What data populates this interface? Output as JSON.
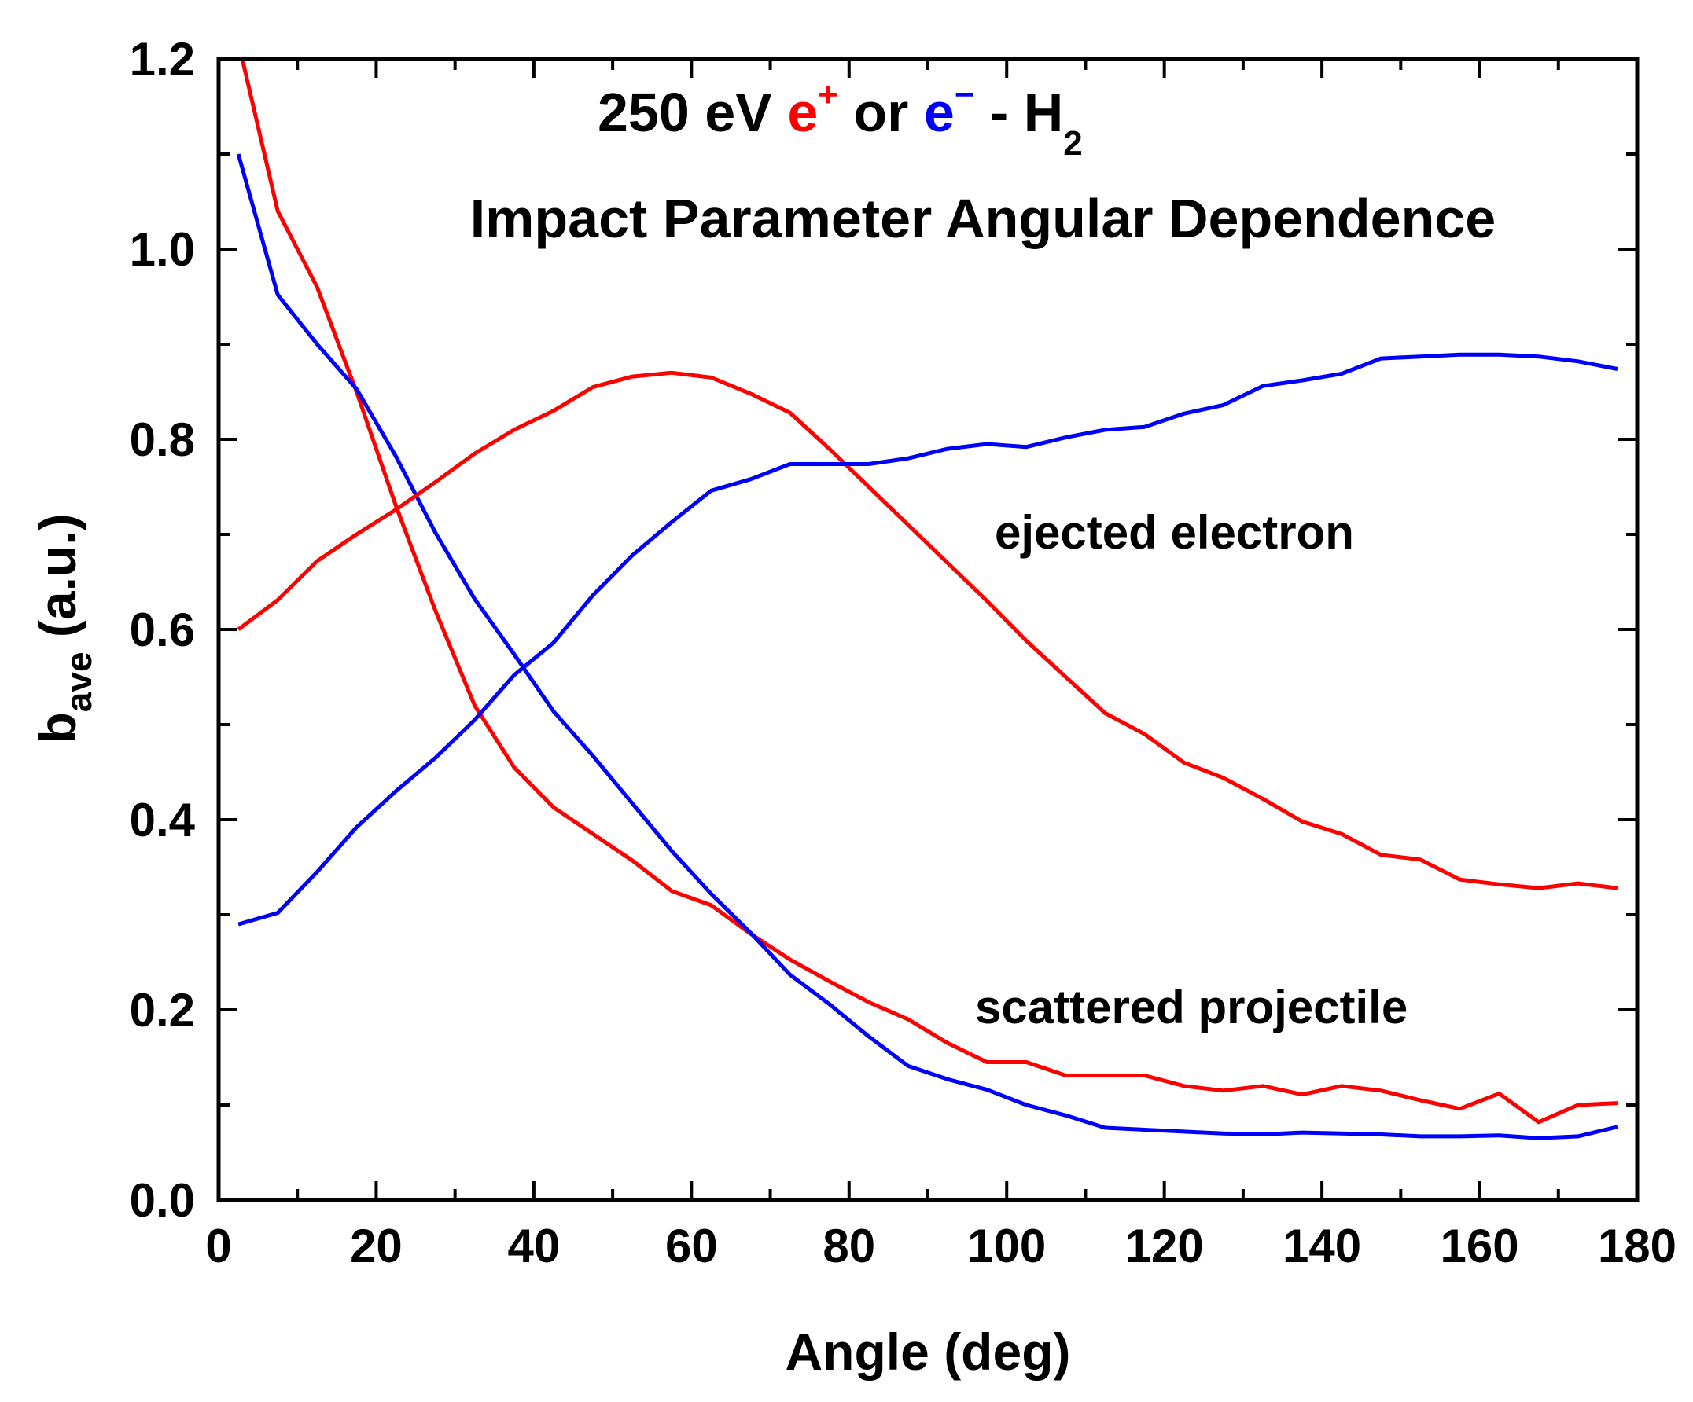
{
  "chart_data": {
    "type": "line",
    "title_parts": {
      "prefix": "250 eV ",
      "positron": "e",
      "positron_sup": "+",
      "or": " or ",
      "electron": "e",
      "electron_sup": "−",
      "target": " - H",
      "target_sub": "2"
    },
    "subtitle": "Impact Parameter Angular Dependence",
    "xlabel": "Angle (deg)",
    "ylabel_main": "b",
    "ylabel_sub": "ave",
    "ylabel_unit": " (a.u.)",
    "xlim": [
      0,
      180
    ],
    "ylim": [
      0,
      1.2
    ],
    "xticks": [
      "0",
      "20",
      "40",
      "60",
      "80",
      "100",
      "120",
      "140",
      "160",
      "180"
    ],
    "yticks": [
      "0.0",
      "0.2",
      "0.4",
      "0.6",
      "0.8",
      "1.0",
      "1.2"
    ],
    "grid": false,
    "annotations": {
      "ejected": "ejected electron",
      "scattered": "scattered projectile"
    },
    "colors": {
      "positron": "#ff0000",
      "electron": "#0000ff"
    },
    "x": [
      2.5,
      7.5,
      12.5,
      17.5,
      22.5,
      27.5,
      32.5,
      37.5,
      42.5,
      47.5,
      52.5,
      57.5,
      62.5,
      67.5,
      72.5,
      77.5,
      82.5,
      87.5,
      92.5,
      97.5,
      102.5,
      107.5,
      112.5,
      117.5,
      122.5,
      127.5,
      132.5,
      137.5,
      142.5,
      147.5,
      152.5,
      157.5,
      162.5,
      167.5,
      172.5,
      177.5
    ],
    "series": [
      {
        "id": "positron-scattered",
        "color": "#ff0000",
        "x": [
          3,
          7.5,
          12.5,
          17.5,
          22.5,
          27.5,
          32.5,
          37.5,
          42.5,
          47.5,
          52.5,
          57.5,
          62.5,
          67.5,
          72.5,
          77.5,
          82.5,
          87.5,
          92.5,
          97.5,
          102.5,
          107.5,
          112.5,
          117.5,
          122.5,
          127.5,
          132.5,
          137.5,
          142.5,
          147.5,
          152.5,
          157.5,
          162.5,
          167.5,
          172.5,
          177.5
        ],
        "values": [
          1.2,
          1.04,
          0.96,
          0.85,
          0.73,
          0.62,
          0.52,
          0.455,
          0.413,
          0.385,
          0.357,
          0.325,
          0.31,
          0.28,
          0.253,
          0.23,
          0.208,
          0.19,
          0.165,
          0.145,
          0.145,
          0.131,
          0.131,
          0.131,
          0.12,
          0.115,
          0.12,
          0.111,
          0.12,
          0.115,
          0.105,
          0.096,
          0.112,
          0.082,
          0.1,
          0.102
        ]
      },
      {
        "id": "electron-scattered",
        "color": "#0000ff",
        "values": [
          1.1,
          0.952,
          0.9,
          0.853,
          0.782,
          0.702,
          0.632,
          0.574,
          0.514,
          0.467,
          0.417,
          0.367,
          0.322,
          0.281,
          0.237,
          0.206,
          0.172,
          0.141,
          0.127,
          0.116,
          0.1,
          0.089,
          0.076,
          0.074,
          0.072,
          0.07,
          0.069,
          0.071,
          0.07,
          0.069,
          0.067,
          0.067,
          0.068,
          0.065,
          0.067,
          0.077
        ]
      },
      {
        "id": "positron-ejected",
        "color": "#ff0000",
        "values": [
          0.6,
          0.631,
          0.672,
          0.7,
          0.726,
          0.755,
          0.785,
          0.81,
          0.83,
          0.855,
          0.866,
          0.87,
          0.865,
          0.848,
          0.828,
          0.79,
          0.75,
          0.71,
          0.67,
          0.63,
          0.588,
          0.55,
          0.512,
          0.49,
          0.46,
          0.444,
          0.422,
          0.398,
          0.385,
          0.363,
          0.358,
          0.337,
          0.332,
          0.328,
          0.333,
          0.328
        ]
      },
      {
        "id": "electron-ejected",
        "color": "#0000ff",
        "values": [
          0.29,
          0.302,
          0.345,
          0.392,
          0.43,
          0.465,
          0.505,
          0.552,
          0.586,
          0.636,
          0.678,
          0.713,
          0.746,
          0.758,
          0.774,
          0.774,
          0.774,
          0.78,
          0.79,
          0.795,
          0.792,
          0.802,
          0.81,
          0.813,
          0.827,
          0.836,
          0.856,
          0.862,
          0.869,
          0.885,
          0.887,
          0.889,
          0.889,
          0.887,
          0.882,
          0.874
        ]
      }
    ]
  }
}
